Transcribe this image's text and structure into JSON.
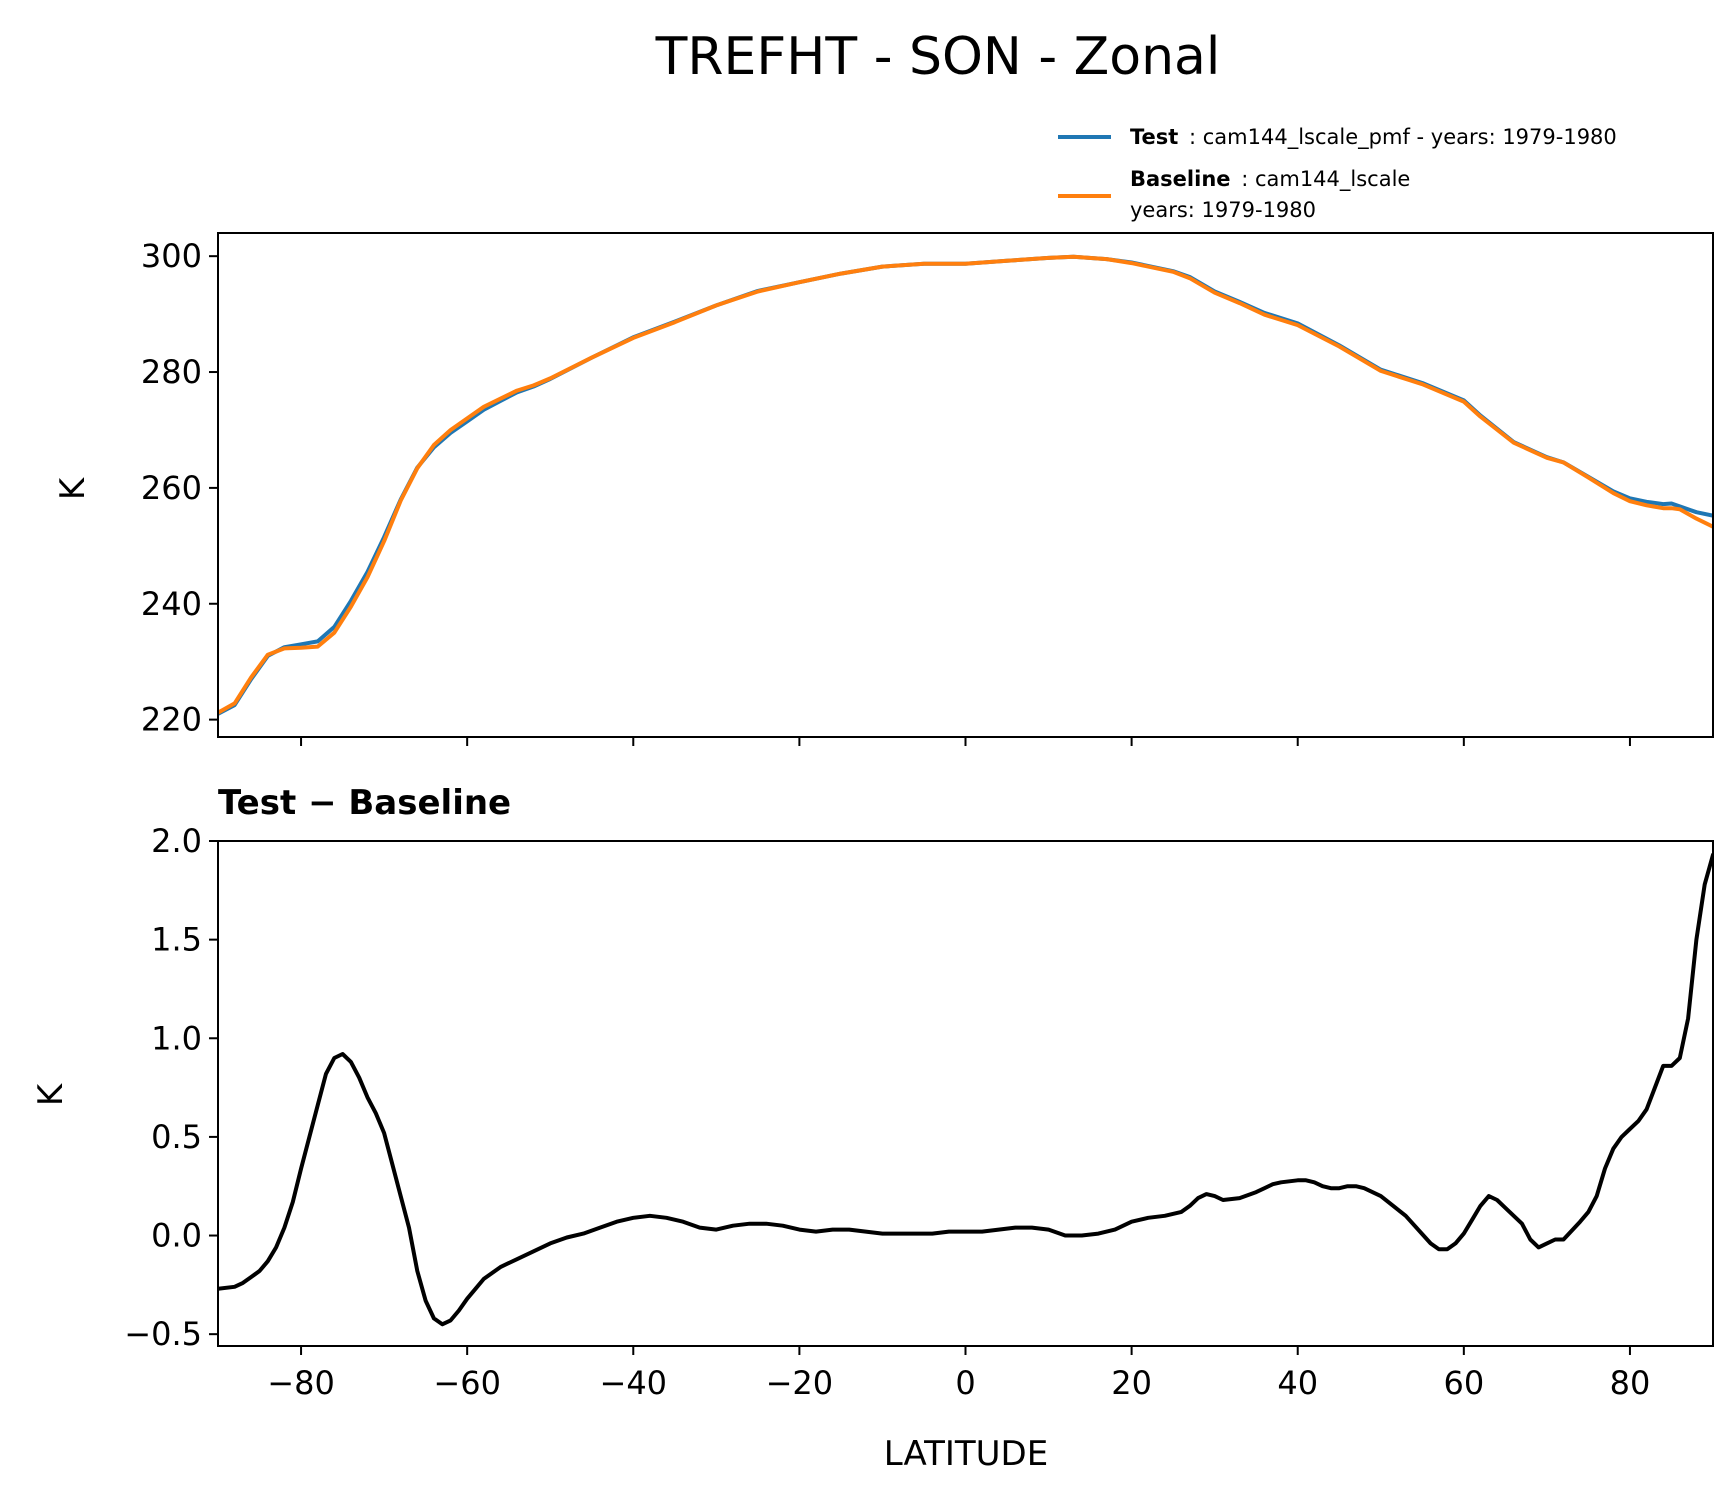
{
  "title": "TREFHT - SON - Zonal",
  "legend": {
    "test_bold": "Test",
    "test_rest": ": cam144_lscale_pmf - years: 1979-1980",
    "baseline_bold": "Baseline",
    "baseline_rest": ": cam144_lscale",
    "baseline_line2": "years: 1979-1980"
  },
  "colors": {
    "test": "#1f77b4",
    "baseline": "#ff7f0e",
    "diff": "#000000"
  },
  "chart_data": [
    {
      "type": "line",
      "ylabel": "K",
      "xlim": [
        -90,
        90
      ],
      "ylim": [
        217,
        304
      ],
      "yticks": [
        220,
        240,
        260,
        280,
        300
      ],
      "ytick_labels": [
        "220",
        "240",
        "260",
        "280",
        "300"
      ],
      "grid": false,
      "legend_position": "above-right",
      "series": [
        {
          "name": "Test",
          "x": [
            -90,
            -88,
            -86,
            -84,
            -82,
            -80,
            -78,
            -76,
            -74,
            -72,
            -70,
            -68,
            -66,
            -64,
            -62,
            -60,
            -58,
            -56,
            -54,
            -52,
            -50,
            -45,
            -40,
            -35,
            -30,
            -25,
            -20,
            -15,
            -10,
            -5,
            0,
            5,
            10,
            13,
            17,
            20,
            25,
            27,
            30,
            33,
            36,
            40,
            45,
            50,
            55,
            60,
            62,
            66,
            70,
            72,
            75,
            78,
            80,
            82,
            84,
            85,
            86,
            88,
            90
          ],
          "y": [
            221,
            222.5,
            227,
            231,
            232.5,
            233,
            233.5,
            236,
            240.5,
            245.5,
            251.5,
            258,
            263.5,
            267,
            269.5,
            271.5,
            273.5,
            275,
            276.5,
            277.5,
            278.8,
            282.5,
            286,
            288.7,
            291.5,
            294,
            295.5,
            297,
            298.2,
            298.7,
            298.7,
            299.2,
            299.7,
            299.9,
            299.5,
            298.9,
            297.4,
            296.4,
            293.9,
            292.1,
            290.2,
            288.4,
            284.6,
            280.4,
            278.1,
            275.1,
            272.5,
            267.9,
            265.3,
            264.4,
            261.9,
            259.4,
            258.2,
            257.6,
            257.2,
            257.3,
            256.8,
            255.8,
            255.2
          ]
        },
        {
          "name": "Baseline",
          "x": [
            -90,
            -88,
            -86,
            -84,
            -82,
            -80,
            -78,
            -76,
            -74,
            -72,
            -70,
            -68,
            -66,
            -64,
            -62,
            -60,
            -58,
            -56,
            -54,
            -52,
            -50,
            -45,
            -40,
            -35,
            -30,
            -25,
            -20,
            -15,
            -10,
            -5,
            0,
            5,
            10,
            13,
            17,
            20,
            25,
            27,
            30,
            33,
            36,
            40,
            45,
            50,
            55,
            60,
            62,
            66,
            70,
            72,
            75,
            78,
            80,
            82,
            84,
            85,
            86,
            88,
            90
          ],
          "y": [
            221.2,
            222.8,
            227.3,
            231.2,
            232.3,
            232.4,
            232.6,
            235,
            239.5,
            244.6,
            250.8,
            257.8,
            263.4,
            267.4,
            270,
            272,
            274,
            275.4,
            276.8,
            277.7,
            278.9,
            282.5,
            285.9,
            288.6,
            291.5,
            293.9,
            295.5,
            297,
            298.2,
            298.7,
            298.7,
            299.2,
            299.7,
            299.9,
            299.5,
            298.8,
            297.3,
            296.2,
            293.7,
            291.9,
            289.9,
            288.1,
            284.4,
            280.2,
            277.9,
            274.9,
            272.3,
            267.8,
            265.2,
            264.4,
            261.8,
            259.1,
            257.7,
            257,
            256.5,
            256.5,
            256.3,
            254.7,
            253.3
          ]
        }
      ]
    },
    {
      "type": "line",
      "title": "Test − Baseline",
      "ylabel": "K",
      "xlabel": "LATITUDE",
      "xlim": [
        -90,
        90
      ],
      "ylim": [
        -0.56,
        2.0
      ],
      "xticks": [
        -80,
        -60,
        -40,
        -20,
        0,
        20,
        40,
        60,
        80
      ],
      "xtick_labels": [
        "−80",
        "−60",
        "−40",
        "−20",
        "0",
        "20",
        "40",
        "60",
        "80"
      ],
      "yticks": [
        -0.5,
        0.0,
        0.5,
        1.0,
        1.5,
        2.0
      ],
      "ytick_labels": [
        "−0.5",
        "0.0",
        "0.5",
        "1.0",
        "1.5",
        "2.0"
      ],
      "grid": false,
      "series": [
        {
          "x": [
            -90,
            -88,
            -87,
            -86,
            -85,
            -84,
            -83,
            -82,
            -81,
            -80,
            -79,
            -78,
            -77,
            -76,
            -75,
            -74,
            -73,
            -72,
            -71,
            -70,
            -69,
            -68,
            -67,
            -66,
            -65,
            -64,
            -63,
            -62,
            -61,
            -60,
            -59,
            -58,
            -56,
            -55,
            -54,
            -52,
            -50,
            -48,
            -46,
            -44,
            -42,
            -40,
            -38,
            -36,
            -34,
            -32,
            -30,
            -28,
            -26,
            -24,
            -22,
            -20,
            -18,
            -16,
            -14,
            -12,
            -10,
            -8,
            -6,
            -4,
            -2,
            0,
            2,
            4,
            6,
            8,
            10,
            12,
            14,
            16,
            18,
            20,
            22,
            24,
            26,
            27,
            28,
            29,
            30,
            31,
            33,
            35,
            36,
            37,
            38,
            40,
            41,
            42,
            43,
            44,
            45,
            46,
            47,
            48,
            50,
            53,
            56,
            57,
            58,
            59,
            60,
            61,
            62,
            63,
            64,
            65,
            67,
            68,
            69,
            70,
            71,
            72,
            74,
            75,
            76,
            77,
            78,
            79,
            80,
            81,
            82,
            83,
            84,
            85,
            86,
            87,
            88,
            89,
            90
          ],
          "y": [
            -0.27,
            -0.26,
            -0.24,
            -0.21,
            -0.18,
            -0.13,
            -0.06,
            0.04,
            0.17,
            0.34,
            0.5,
            0.66,
            0.82,
            0.9,
            0.92,
            0.88,
            0.8,
            0.7,
            0.62,
            0.52,
            0.36,
            0.2,
            0.04,
            -0.18,
            -0.33,
            -0.42,
            -0.45,
            -0.43,
            -0.38,
            -0.32,
            -0.27,
            -0.22,
            -0.16,
            -0.14,
            -0.12,
            -0.08,
            -0.04,
            -0.01,
            0.01,
            0.04,
            0.07,
            0.09,
            0.1,
            0.09,
            0.07,
            0.04,
            0.03,
            0.05,
            0.06,
            0.06,
            0.05,
            0.03,
            0.02,
            0.03,
            0.03,
            0.02,
            0.01,
            0.01,
            0.01,
            0.01,
            0.02,
            0.02,
            0.02,
            0.03,
            0.04,
            0.04,
            0.03,
            0.0,
            0.0,
            0.01,
            0.03,
            0.07,
            0.09,
            0.1,
            0.12,
            0.15,
            0.19,
            0.21,
            0.2,
            0.18,
            0.19,
            0.22,
            0.24,
            0.26,
            0.27,
            0.28,
            0.28,
            0.27,
            0.25,
            0.24,
            0.24,
            0.25,
            0.25,
            0.24,
            0.2,
            0.1,
            -0.04,
            -0.07,
            -0.07,
            -0.04,
            0.01,
            0.08,
            0.15,
            0.2,
            0.18,
            0.14,
            0.06,
            -0.02,
            -0.06,
            -0.04,
            -0.02,
            -0.02,
            0.07,
            0.12,
            0.2,
            0.34,
            0.44,
            0.5,
            0.54,
            0.58,
            0.64,
            0.75,
            0.86,
            0.86,
            0.9,
            1.1,
            1.5,
            1.78,
            1.93
          ]
        }
      ]
    }
  ]
}
